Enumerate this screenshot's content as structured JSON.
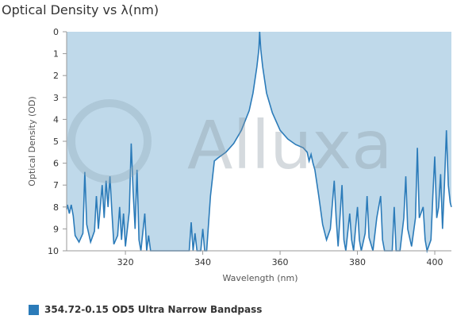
{
  "chart_data": {
    "type": "line",
    "title": "Optical Density vs λ(nm)",
    "watermark": "Alluxa",
    "x_label": "Wavelength (nm)",
    "y_label": "Optical Density (OD)",
    "xlim": [
      304.8,
      404.3
    ],
    "xticks": [
      320,
      340,
      360,
      380,
      400
    ],
    "ylim": [
      0,
      10
    ],
    "yticks": [
      0,
      1,
      2,
      3,
      4,
      5,
      6,
      7,
      8,
      9,
      10
    ],
    "y_inverted": true,
    "fill_above": true,
    "fill_color": "#bfd9ea",
    "grid": false,
    "legend": "bottom-left",
    "series": [
      {
        "name": "354.72-0.15 OD5 Ultra Narrow Bandpass",
        "color": "#2b7bb9",
        "x": [
          304.8,
          305,
          305.5,
          306,
          306.5,
          307,
          308,
          309,
          309.5,
          310,
          311,
          312,
          312.5,
          313,
          314,
          314.5,
          315,
          315.5,
          316,
          316.5,
          317,
          318,
          318.5,
          319,
          319.5,
          320,
          321,
          321.5,
          322,
          322.5,
          323,
          323.5,
          324,
          325,
          325.5,
          326,
          326.5,
          336.5,
          337,
          337.5,
          338,
          338.5,
          339.5,
          340,
          340.5,
          341,
          342,
          343,
          344,
          346,
          348,
          350,
          352,
          353,
          354,
          354.5,
          354.72,
          355,
          355.5,
          356.5,
          358,
          360,
          362,
          364,
          366,
          367,
          367.5,
          368,
          368.5,
          369,
          370,
          371,
          372,
          373,
          374,
          374.5,
          375,
          376,
          376.5,
          377,
          378,
          378.5,
          379,
          380,
          380.5,
          381,
          382,
          382.5,
          383,
          384,
          385,
          386,
          386.5,
          387,
          389,
          389.5,
          390,
          391,
          392,
          392.5,
          393,
          394,
          395,
          395.5,
          396,
          397,
          397.5,
          398,
          399,
          399.5,
          400,
          400.5,
          401,
          401.5,
          402,
          402.5,
          403,
          403.5,
          404,
          404.3
        ],
        "values": [
          8.1,
          7.9,
          8.3,
          7.9,
          8.4,
          9.3,
          9.6,
          9.2,
          6.4,
          8.8,
          9.6,
          9.1,
          7.5,
          9.0,
          7.0,
          8.5,
          6.8,
          8.0,
          6.6,
          8.2,
          9.7,
          9.3,
          8.0,
          9.5,
          8.3,
          9.8,
          8.2,
          5.1,
          7.3,
          9.0,
          6.3,
          9.5,
          10,
          8.3,
          10,
          9.3,
          10,
          10,
          8.7,
          10,
          9.2,
          10,
          10,
          9.0,
          10,
          10,
          7.5,
          5.9,
          5.75,
          5.5,
          5.1,
          4.5,
          3.6,
          2.8,
          1.6,
          0.8,
          0,
          0.8,
          1.6,
          2.8,
          3.7,
          4.5,
          4.9,
          5.15,
          5.3,
          5.5,
          5.9,
          5.6,
          6.0,
          6.3,
          7.5,
          8.8,
          9.5,
          9.0,
          6.8,
          8.5,
          9.8,
          7.0,
          9.5,
          10,
          8.3,
          9.5,
          10,
          8.0,
          9.5,
          10,
          9.2,
          7.5,
          9.4,
          10,
          8.5,
          7.5,
          9.5,
          10,
          10,
          8.0,
          10,
          10,
          8.5,
          6.6,
          9.0,
          9.8,
          8.5,
          5.3,
          8.5,
          8.0,
          9.5,
          10,
          9.5,
          7.5,
          5.7,
          8.5,
          8.0,
          6.5,
          9.0,
          7.0,
          4.5,
          7.0,
          7.8,
          8.0
        ]
      }
    ]
  }
}
